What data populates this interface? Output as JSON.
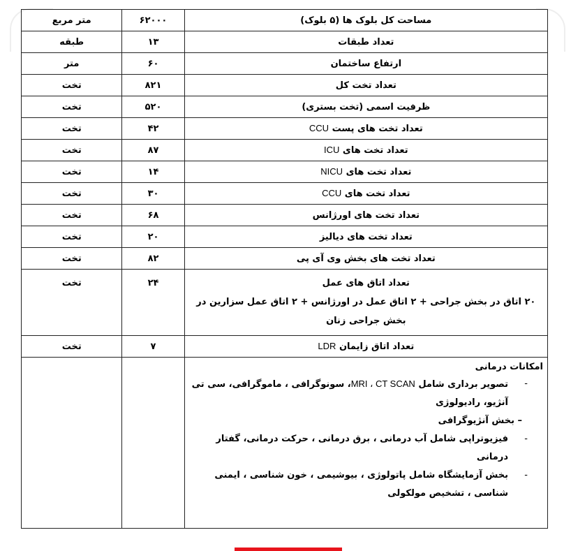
{
  "rows": [
    {
      "label": "مساحت کل بلوک ها (۵ بلوک)",
      "value": "۶۲۰۰۰",
      "unit": "متر مربع"
    },
    {
      "label": "تعداد طبقات",
      "value": "۱۳",
      "unit": "طبقه"
    },
    {
      "label": "ارتفاع ساختمان",
      "value": "۶۰",
      "unit": "متر"
    },
    {
      "label": "تعداد تخت کل",
      "value": "۸۲۱",
      "unit": "تخت"
    },
    {
      "label": "ظرفیت اسمی (تخت بستری)",
      "value": "۵۲۰",
      "unit": "تخت"
    },
    {
      "label": "تعداد تخت های پست",
      "label_latin": "CCU",
      "value": "۴۲",
      "unit": "تخت"
    },
    {
      "label": "تعداد تخت های",
      "label_latin": "ICU",
      "value": "۸۷",
      "unit": "تخت"
    },
    {
      "label": "تعداد تخت های",
      "label_latin": "NICU",
      "value": "۱۴",
      "unit": "تخت"
    },
    {
      "label": "تعداد تخت های",
      "label_latin": "CCU",
      "value": "۳۰",
      "unit": "تخت"
    },
    {
      "label": "تعداد تخت های اورژانس",
      "value": "۶۸",
      "unit": "تخت"
    },
    {
      "label": "تعداد تخت های دیالیز",
      "value": "۲۰",
      "unit": "تخت"
    },
    {
      "label": "تعداد تخت های بخش وی آی پی",
      "value": "۸۲",
      "unit": "تخت"
    }
  ],
  "operating_rooms": {
    "label": "تعداد اتاق های عمل",
    "detail": "۲۰ اتاق در بخش جراحی + ۲ اتاق عمل در اورژانس + ۲ اتاق عمل سزارین در بخش جراحی زنان",
    "value": "۲۴",
    "unit": "تخت"
  },
  "ldr": {
    "label": "تعداد اتاق زایمان",
    "label_latin": "LDR",
    "value": "۷",
    "unit": "تخت"
  },
  "facilities": {
    "title": "امکانات درمانی",
    "items": [
      {
        "pre": "تصویر برداری شامل",
        "latin": "MRI ، CT SCAN",
        "post": "، سونوگرافی ، ماموگرافی، سی تی آنژیو، رادیولوژی"
      },
      {
        "pre": "بخش آنژیوگرافی",
        "latin": "",
        "post": ""
      },
      {
        "pre": "فیزیوتراپی شامل آب درمانی ، برق درمانی ، حرکت درمانی، گفتار درمانی",
        "latin": "",
        "post": ""
      },
      {
        "pre": "بخش آزمایشگاه شامل پاتولوژی ، بیوشیمی ، خون شناسی ، ایمنی شناسی ، تشخیص مولکولی",
        "latin": "",
        "post": ""
      }
    ]
  },
  "colors": {
    "accent_bar": "#e8141c"
  }
}
